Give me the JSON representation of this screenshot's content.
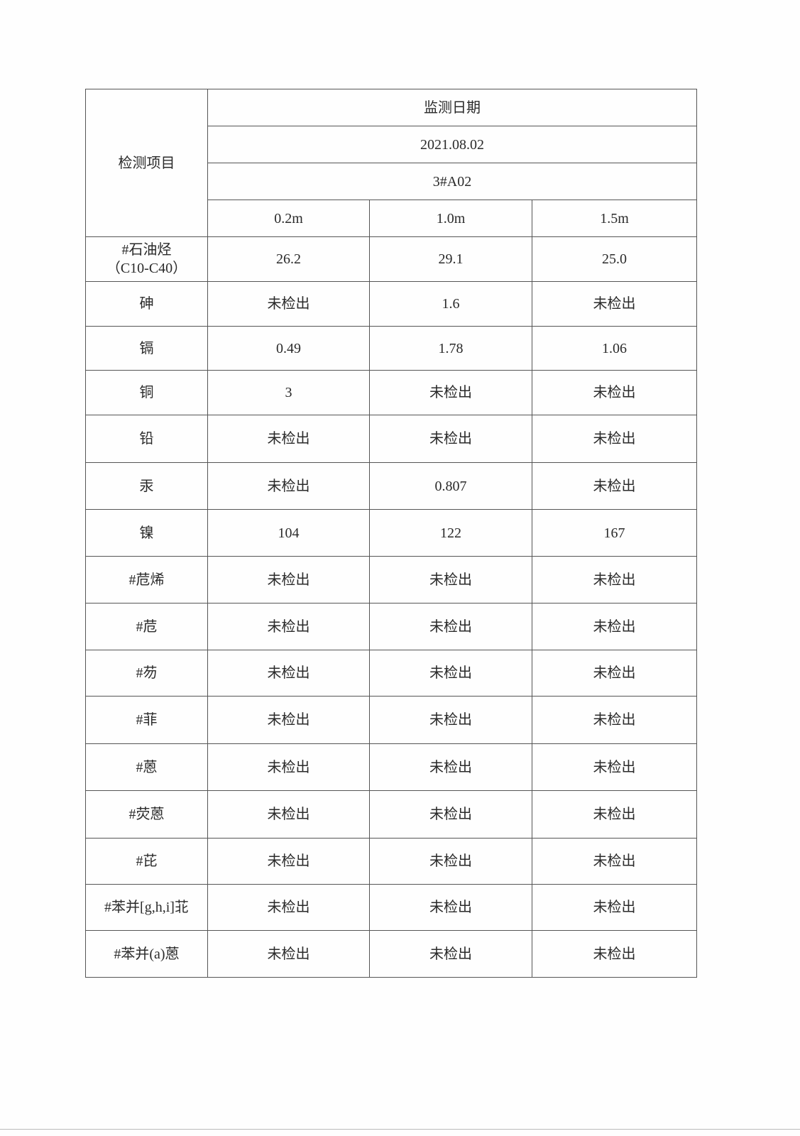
{
  "header": {
    "item_label": "检测项目",
    "date_label": "监测日期",
    "date": "2021.08.02",
    "point": "3#A02",
    "depths": [
      "0.2m",
      "1.0m",
      "1.5m"
    ]
  },
  "rows": [
    {
      "name": "#石油烃",
      "name_sub": "（C10-C40）",
      "values": [
        "26.2",
        "29.1",
        "25.0"
      ]
    },
    {
      "name": "砷",
      "values": [
        "未检出",
        "1.6",
        "未检出"
      ]
    },
    {
      "name": "镉",
      "values": [
        "0.49",
        "1.78",
        "1.06"
      ]
    },
    {
      "name": "铜",
      "values": [
        "3",
        "未检出",
        "未检出"
      ]
    },
    {
      "name": "铅",
      "values": [
        "未检出",
        "未检出",
        "未检出"
      ]
    },
    {
      "name": "汞",
      "values": [
        "未检出",
        "0.807",
        "未检出"
      ]
    },
    {
      "name": "镍",
      "values": [
        "104",
        "122",
        "167"
      ]
    },
    {
      "name": "#苊烯",
      "values": [
        "未检出",
        "未检出",
        "未检出"
      ]
    },
    {
      "name": "#苊",
      "values": [
        "未检出",
        "未检出",
        "未检出"
      ]
    },
    {
      "name": "#芴",
      "values": [
        "未检出",
        "未检出",
        "未检出"
      ]
    },
    {
      "name": "#菲",
      "values": [
        "未检出",
        "未检出",
        "未检出"
      ]
    },
    {
      "name": "#蒽",
      "values": [
        "未检出",
        "未检出",
        "未检出"
      ]
    },
    {
      "name": "#荧蒽",
      "values": [
        "未检出",
        "未检出",
        "未检出"
      ]
    },
    {
      "name": "#芘",
      "values": [
        "未检出",
        "未检出",
        "未检出"
      ]
    },
    {
      "name": "#苯并[g,h,i]苝",
      "values": [
        "未检出",
        "未检出",
        "未检出"
      ]
    },
    {
      "name": "#苯并(a)蒽",
      "values": [
        "未检出",
        "未检出",
        "未检出"
      ]
    }
  ]
}
